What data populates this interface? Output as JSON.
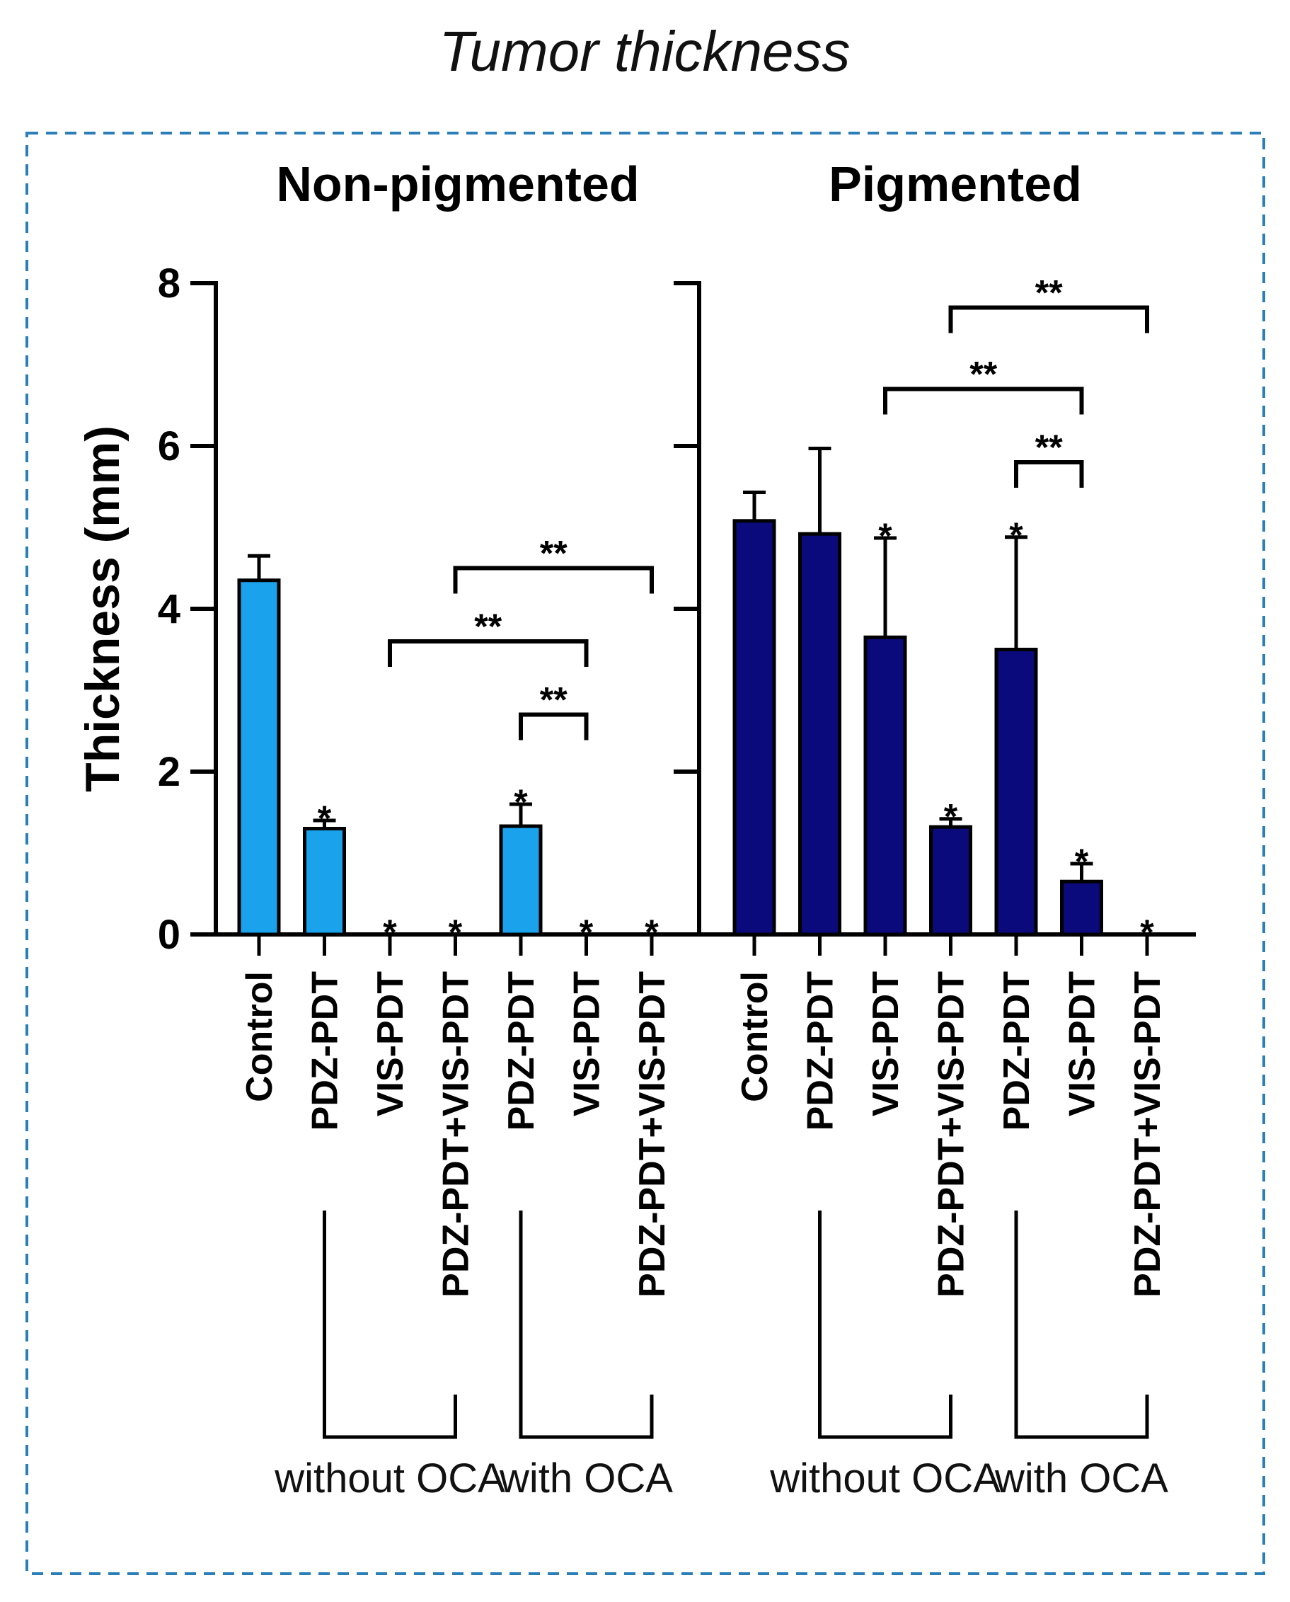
{
  "figure_title": "Tumor thickness",
  "colors": {
    "non_pigmented": "#1aa3ec",
    "pigmented": "#0a0a7c",
    "frame": "#2a7fb8"
  },
  "chart_data": {
    "type": "bar",
    "ylabel": "Thickness (mm)",
    "ylim": [
      0,
      8
    ],
    "yticks": [
      0,
      2,
      4,
      6,
      8
    ],
    "grid": false,
    "categories": [
      "Control",
      "PDZ-PDT",
      "VIS-PDT",
      "PDZ-PDT+VIS-PDT",
      "PDZ-PDT",
      "VIS-PDT",
      "PDZ-PDT+VIS-PDT"
    ],
    "groups": [
      {
        "label": "without OCA",
        "from": 1,
        "to": 3
      },
      {
        "label": "with OCA",
        "from": 4,
        "to": 6
      }
    ],
    "series": [
      {
        "name": "Non-pigmented",
        "values": [
          4.35,
          1.3,
          0,
          0,
          1.33,
          0,
          0
        ],
        "errors": [
          0.3,
          0.1,
          0,
          0,
          0.27,
          0,
          0
        ],
        "stars": [
          "",
          "*",
          "*",
          "*",
          "*",
          "*",
          "*"
        ],
        "brackets": [
          {
            "from": 4,
            "to": 5,
            "label": "**",
            "level": 2.7
          },
          {
            "from": 2,
            "to": 5,
            "label": "**",
            "level": 3.6
          },
          {
            "from": 3,
            "to": 6,
            "label": "**",
            "level": 4.5
          }
        ]
      },
      {
        "name": "Pigmented",
        "values": [
          5.08,
          4.92,
          3.65,
          1.32,
          3.5,
          0.65,
          0
        ],
        "errors": [
          0.35,
          1.05,
          1.22,
          0.1,
          1.38,
          0.22,
          0
        ],
        "stars": [
          "",
          "",
          "*",
          "*",
          "*",
          "*",
          "*"
        ],
        "brackets": [
          {
            "from": 4,
            "to": 5,
            "label": "**",
            "level": 5.8
          },
          {
            "from": 2,
            "to": 5,
            "label": "**",
            "level": 6.7
          },
          {
            "from": 3,
            "to": 6,
            "label": "**",
            "level": 7.7
          }
        ]
      }
    ]
  }
}
